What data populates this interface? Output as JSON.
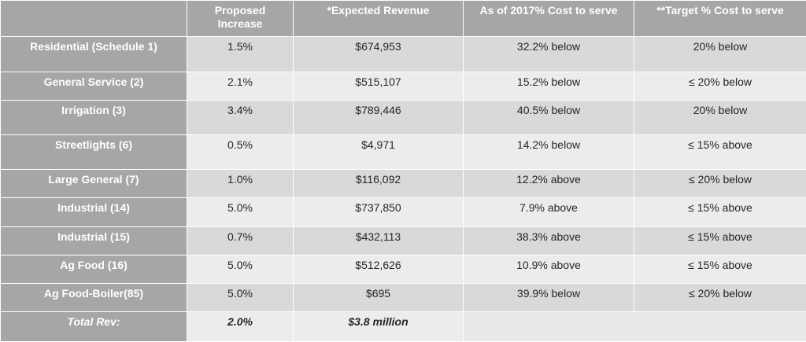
{
  "table": {
    "columns": [
      "",
      "Proposed Increase",
      "*Expected Revenue",
      "As of 2017% Cost to serve",
      "**Target % Cost to serve"
    ],
    "rows": [
      {
        "label": "Residential (Schedule 1)",
        "increase": "1.5%",
        "revenue": "$674,953",
        "cost_2017": "32.2% below",
        "target": "20% below"
      },
      {
        "label": "General Service (2)",
        "increase": "2.1%",
        "revenue": "$515,107",
        "cost_2017": "15.2% below",
        "target": "≤ 20% below"
      },
      {
        "label": "Irrigation (3)",
        "increase": "3.4%",
        "revenue": "$789,446",
        "cost_2017": "40.5% below",
        "target": "20% below"
      },
      {
        "label": "Streetlights (6)",
        "increase": "0.5%",
        "revenue": "$4,971",
        "cost_2017": "14.2% below",
        "target": "≤ 15% above"
      },
      {
        "label": "Large General (7)",
        "increase": "1.0%",
        "revenue": "$116,092",
        "cost_2017": "12.2% above",
        "target": "≤ 20% below"
      },
      {
        "label": "Industrial (14)",
        "increase": "5.0%",
        "revenue": "$737,850",
        "cost_2017": "7.9% above",
        "target": "≤ 15% above"
      },
      {
        "label": "Industrial (15)",
        "increase": "0.7%",
        "revenue": "$432,113",
        "cost_2017": "38.3% above",
        "target": "≤ 15% above"
      },
      {
        "label": "Ag Food (16)",
        "increase": "5.0%",
        "revenue": "$512,626",
        "cost_2017": "10.9% above",
        "target": "≤ 15% above"
      },
      {
        "label": "Ag Food-Boiler(85)",
        "increase": "5.0%",
        "revenue": "$695",
        "cost_2017": "39.9% below",
        "target": "≤ 20% below"
      }
    ],
    "total": {
      "label": "Total Rev:",
      "increase": "2.0%",
      "revenue": "$3.8 million"
    }
  },
  "colors": {
    "header_bg": "#a6a6a6",
    "row_odd_bg": "#d9d9d9",
    "row_even_bg": "#ececec",
    "header_text": "#ffffff"
  }
}
